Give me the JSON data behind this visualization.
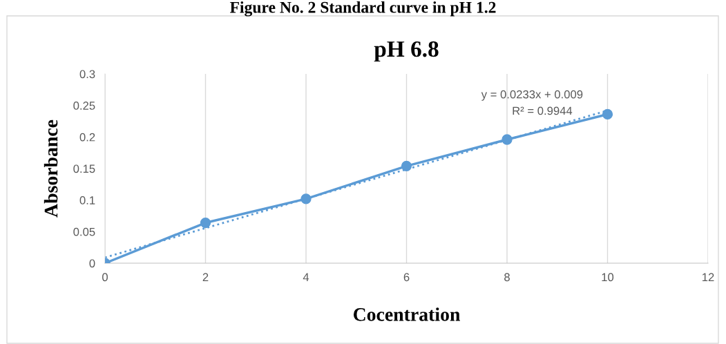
{
  "chart_data": {
    "type": "line",
    "title": "pH 6.8",
    "xlabel": "Cocentration",
    "ylabel": "Absorbance",
    "annotations": [
      "Figure No. 2 Standard curve in pH 1.2",
      "y = 0.0233x + 0.009",
      "R² = 0.9944"
    ],
    "x": [
      0,
      2,
      4,
      6,
      8,
      10
    ],
    "series": [
      {
        "color": "#5b9bd5",
        "values": [
          0,
          0.064,
          0.102,
          0.154,
          0.196,
          0.236
        ],
        "marker": "circle",
        "line_style": "solid"
      },
      {
        "type": "line",
        "x": [
          0,
          10
        ],
        "color": "#5b9bd5",
        "values": [
          0.009,
          0.242
        ],
        "marker": "none",
        "line_style": "dotted"
      }
    ],
    "xlim": [
      0,
      12
    ],
    "xticks": [
      0,
      2,
      4,
      6,
      8,
      10,
      12
    ],
    "ylim": [
      0,
      0.3
    ],
    "yticks": [
      0,
      0.05,
      0.1,
      0.15,
      0.2,
      0.25,
      0.3
    ],
    "grid": "x",
    "legend": false
  }
}
